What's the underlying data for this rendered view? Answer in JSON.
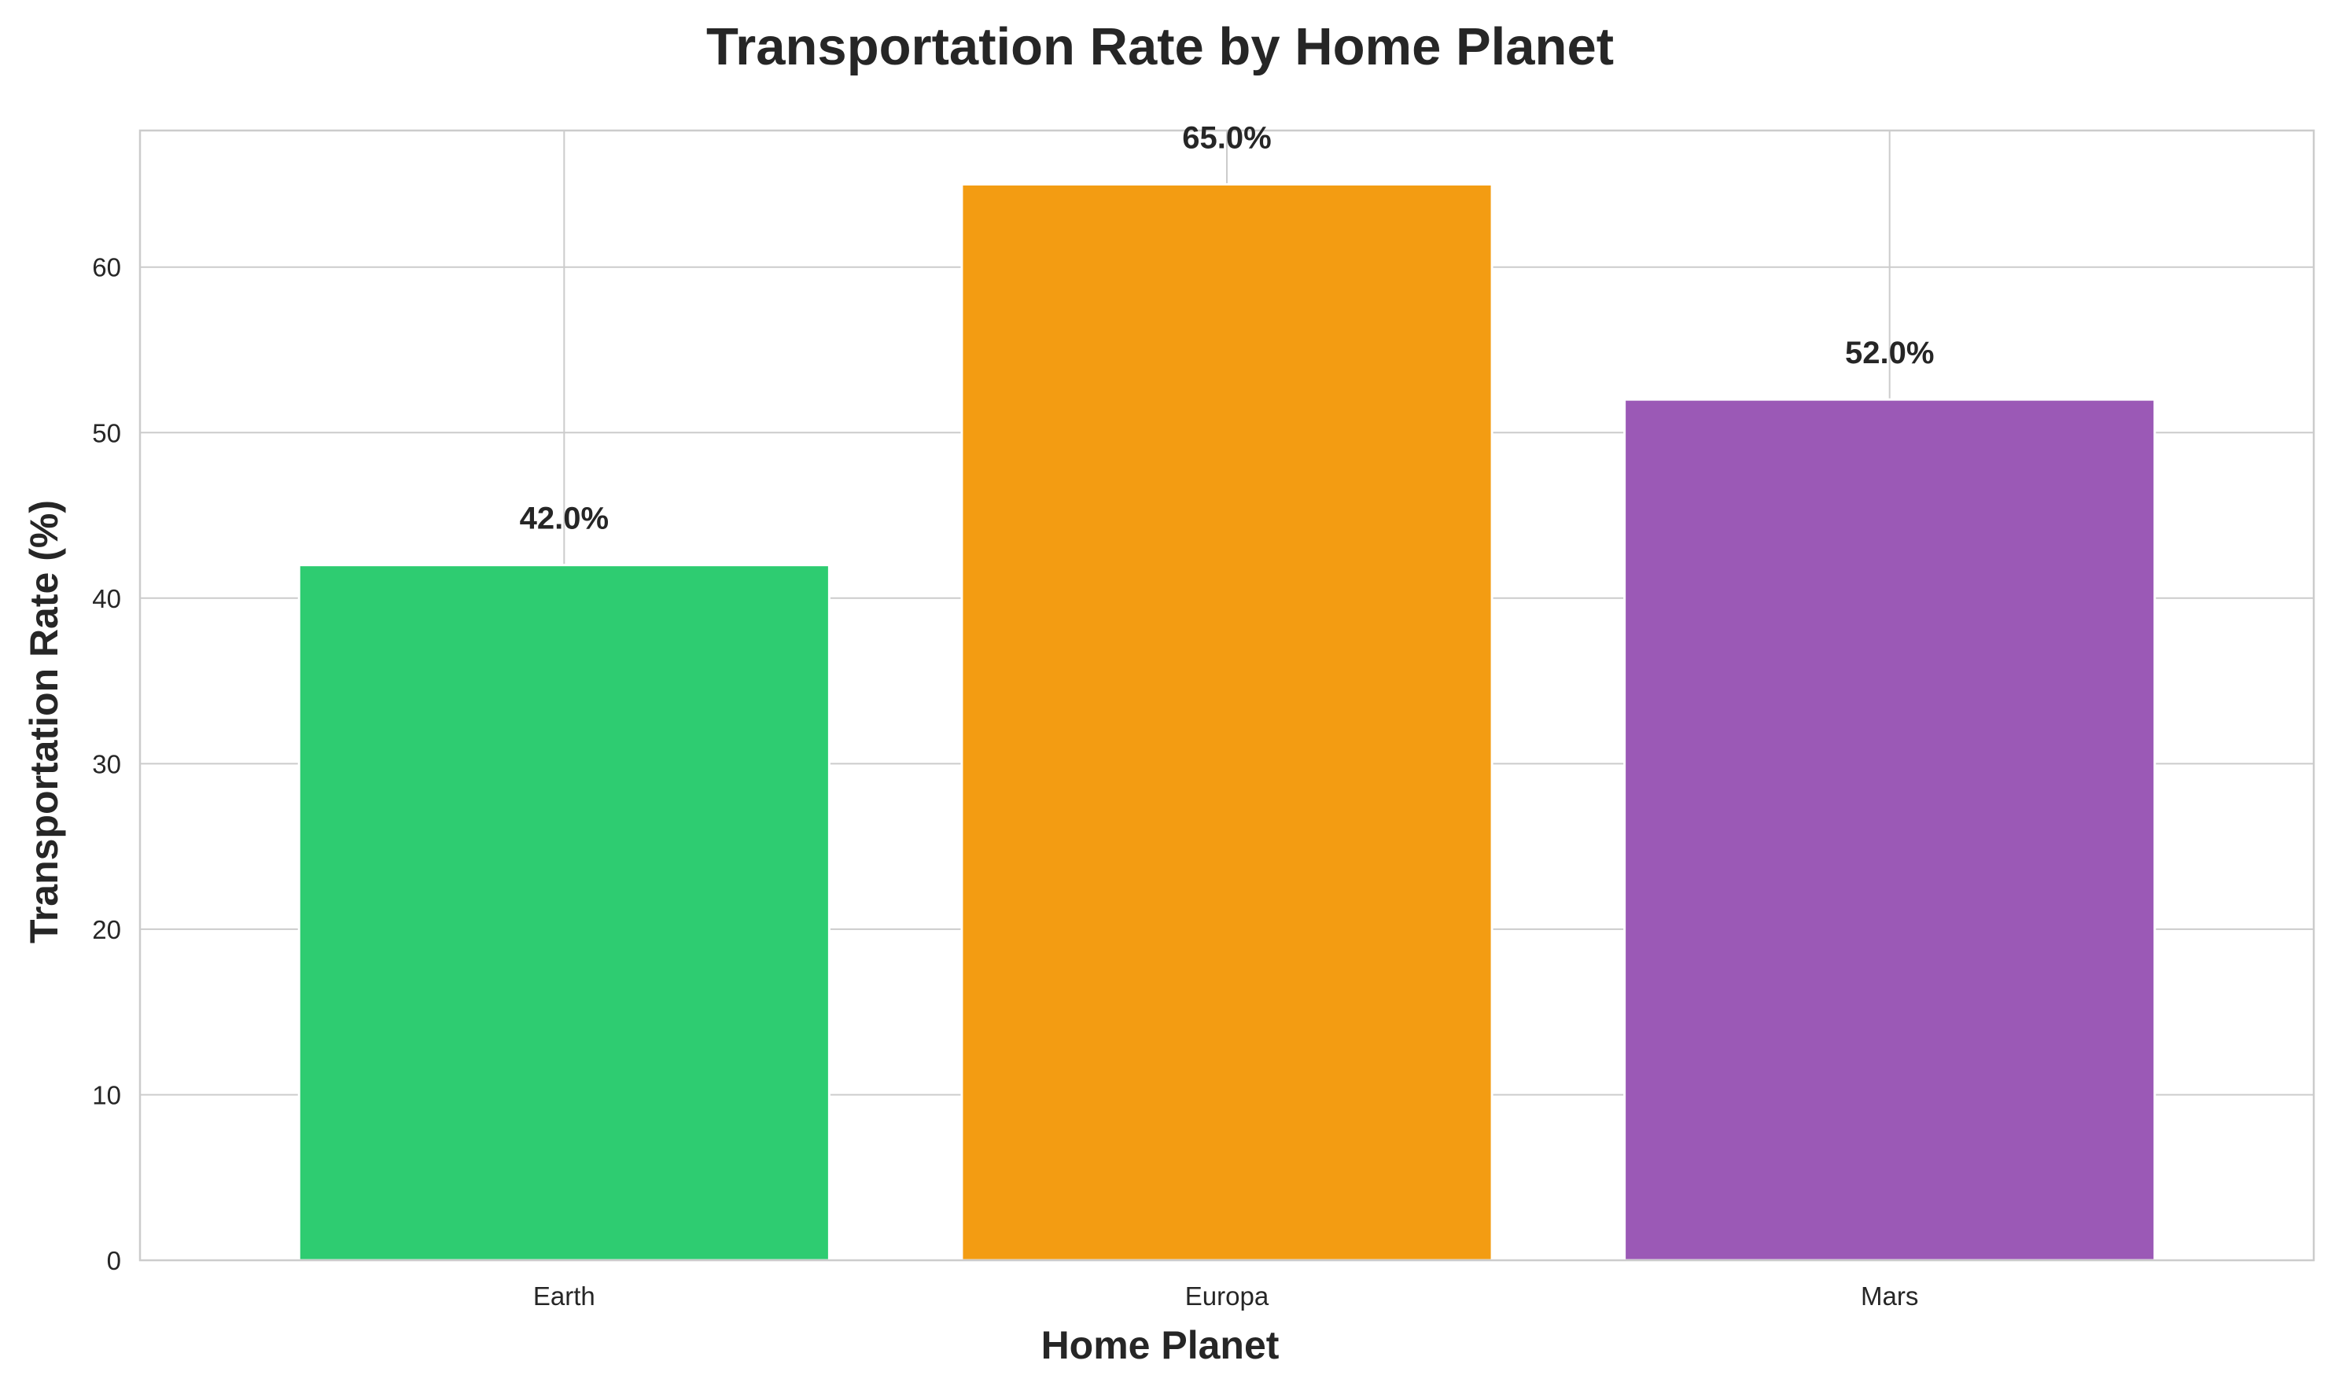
{
  "chart_data": {
    "type": "bar",
    "title": "Transportation Rate by Home Planet",
    "xlabel": "Home Planet",
    "ylabel": "Transportation Rate (%)",
    "categories": [
      "Earth",
      "Europa",
      "Mars"
    ],
    "values": [
      42.0,
      65.0,
      52.0
    ],
    "data_labels": [
      "42.0%",
      "65.0%",
      "52.0%"
    ],
    "colors": [
      "#2ecc71",
      "#f39c12",
      "#9b59b6"
    ],
    "ylim": [
      0,
      68.25
    ],
    "yticks": [
      0,
      10,
      20,
      30,
      40,
      50,
      60
    ],
    "grid": true,
    "legend": "none"
  }
}
